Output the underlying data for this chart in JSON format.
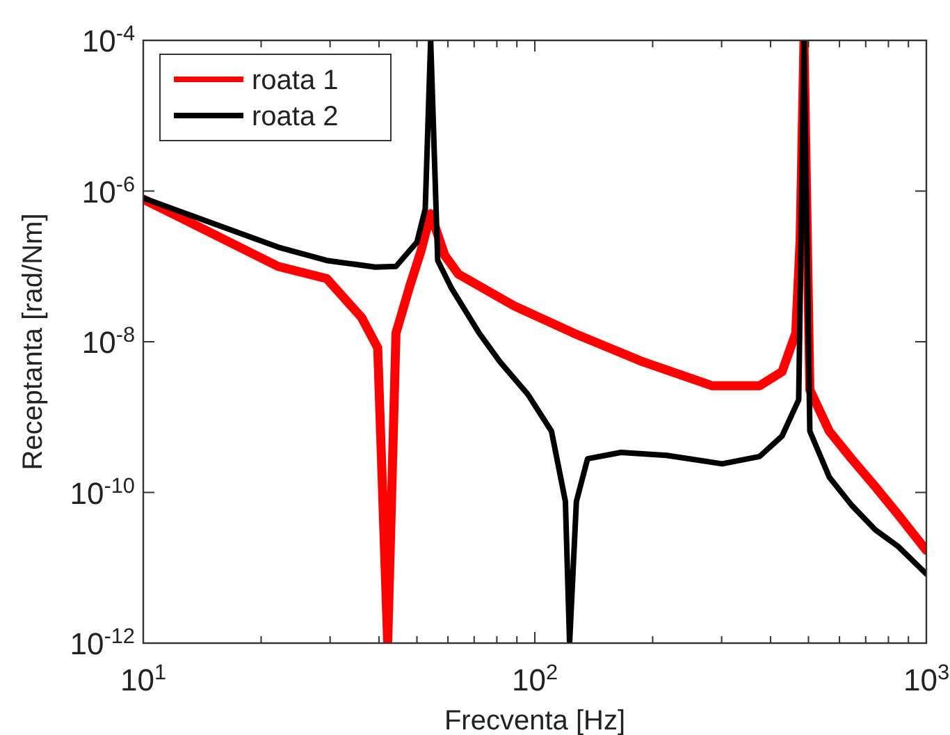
{
  "chart_data": {
    "type": "line",
    "xlabel": "Frecventa [Hz]",
    "ylabel": "Receptanta [rad/Nm]",
    "log": "xy",
    "grid": false,
    "legend": "top left",
    "line_style": "solid",
    "marker": "none",
    "xlim": [
      10,
      1000
    ],
    "ylim": [
      1e-12,
      0.0001
    ],
    "xticks": [
      {
        "value": 10,
        "label": "10$^{1}$"
      },
      {
        "value": 20,
        "label": null
      },
      {
        "value": 30,
        "label": null
      },
      {
        "value": 40,
        "label": null
      },
      {
        "value": 50,
        "label": null
      },
      {
        "value": 60,
        "label": null
      },
      {
        "value": 70,
        "label": null
      },
      {
        "value": 80,
        "label": null
      },
      {
        "value": 90,
        "label": null
      },
      {
        "value": 100,
        "label": "10$^{2}$"
      },
      {
        "value": 200,
        "label": null
      },
      {
        "value": 300,
        "label": null
      },
      {
        "value": 400,
        "label": null
      },
      {
        "value": 500,
        "label": null
      },
      {
        "value": 600,
        "label": null
      },
      {
        "value": 700,
        "label": null
      },
      {
        "value": 800,
        "label": null
      },
      {
        "value": 900,
        "label": null
      },
      {
        "value": 1000,
        "label": "10$^{3}$"
      }
    ],
    "yticks": [
      {
        "value": 1e-12,
        "label": "10$^{-12}$"
      },
      {
        "value": 1e-10,
        "label": "10$^{-10}$"
      },
      {
        "value": 1e-08,
        "label": "10$^{-8}$"
      },
      {
        "value": 1e-06,
        "label": "10$^{-6}$"
      },
      {
        "value": 0.0001,
        "label": "10$^{-4}$"
      }
    ],
    "series": [
      {
        "name": "roata 1",
        "color": "#ff0000",
        "x": [
          10,
          22.1,
          29.4,
          36.1,
          39.7,
          42.1,
          44.2,
          48,
          51.2,
          54.2,
          58.9,
          63.8,
          88.5,
          125.7,
          189,
          284,
          375,
          428,
          464,
          476,
          487,
          504,
          565,
          644,
          740,
          849,
          1000
        ],
        "values": [
          7.8e-07,
          1e-07,
          6.9e-08,
          2.1e-08,
          8.3e-09,
          1e-12,
          1.3e-08,
          5.6e-08,
          1.6e-07,
          5e-07,
          1.4e-07,
          7.9e-08,
          3e-08,
          1.3e-08,
          5.4e-09,
          2.6e-09,
          2.6e-09,
          4e-09,
          1.3e-08,
          2.2e-07,
          0.0001,
          2.3e-09,
          6.5e-10,
          2.8e-10,
          1.2e-10,
          5e-11,
          1.7e-11
        ]
      },
      {
        "name": "roata 2",
        "color": "#000000",
        "x": [
          10,
          22.1,
          29.4,
          39.1,
          44.2,
          50,
          52.5,
          54.2,
          56.5,
          61.3,
          72.1,
          81.5,
          96,
          110.3,
          119.7,
          122.7,
          127.7,
          136.4,
          166,
          217,
          301,
          375,
          428,
          472,
          487,
          504,
          565,
          644,
          740,
          849,
          1000
        ],
        "values": [
          8.1e-07,
          1.8e-07,
          1.2e-07,
          9.8e-08,
          1e-07,
          2.1e-07,
          5.8e-07,
          0.0001,
          1.2e-07,
          5.1e-08,
          1.3e-08,
          5.4e-09,
          2e-09,
          6.5e-10,
          7.6e-11,
          1e-12,
          7.6e-11,
          2.8e-10,
          3.4e-10,
          3.1e-10,
          2.4e-10,
          3e-10,
          5.6e-10,
          1.7e-09,
          0.0001,
          6.5e-10,
          1.6e-10,
          6.8e-11,
          3.2e-11,
          1.9e-11,
          8.3e-12
        ]
      }
    ]
  }
}
